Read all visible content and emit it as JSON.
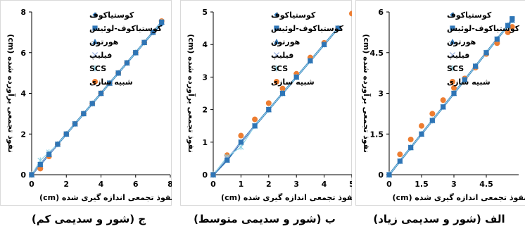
{
  "chart_data": [
    {
      "type": "scatter",
      "caption": "ج (شور و سدیمی کم)",
      "xlabel": "نفوذ تجمعی اندازه گیری شده (cm)",
      "ylabel": "نفوذ تجمعی برآورده شده (cm)",
      "xlim": [
        0,
        8
      ],
      "ylim": [
        0,
        8
      ],
      "xticks": [
        0,
        2,
        4,
        6,
        8
      ],
      "yticks": [
        0,
        2,
        4,
        6,
        8
      ],
      "xtick_labels": [
        "0",
        "2",
        "4",
        "6",
        "8"
      ],
      "ytick_labels": [
        "0",
        "2",
        "4",
        "6",
        "8"
      ],
      "legend_position": "top-left",
      "series": [
        {
          "name": "کوستیاکوف",
          "marker": "diamond",
          "color": "#2e75b6",
          "x": [
            0,
            0.5,
            1,
            1.5,
            2,
            2.5,
            3,
            3.5,
            4,
            4.5,
            5,
            5.5,
            6,
            6.5,
            7,
            7.5
          ],
          "y": [
            0,
            0.5,
            1,
            1.5,
            2,
            2.5,
            3,
            3.5,
            4,
            4.5,
            5,
            5.5,
            6,
            6.5,
            7,
            7.4
          ]
        },
        {
          "name": "کوستیاکوف-لوئیس",
          "marker": "square",
          "color": "#2e75b6",
          "x": [
            0,
            0.5,
            1,
            1.5,
            2,
            2.5,
            3,
            3.5,
            4,
            4.5,
            5,
            5.5,
            6,
            6.5,
            7,
            7.5
          ],
          "y": [
            0,
            0.5,
            1,
            1.5,
            2,
            2.5,
            3,
            3.5,
            4,
            4.5,
            5,
            5.5,
            6,
            6.5,
            7,
            7.5
          ]
        },
        {
          "name": "هورتون",
          "marker": "triangle",
          "color": "#2e75b6",
          "x": [
            0,
            0.5,
            1,
            1.5,
            2,
            2.5,
            3,
            3.5,
            4,
            4.5,
            5,
            5.5,
            6,
            6.5,
            7,
            7.5
          ],
          "y": [
            0,
            0.5,
            1,
            1.5,
            2,
            2.5,
            3,
            3.5,
            4,
            4.5,
            5,
            5.5,
            6,
            6.5,
            7,
            7.5
          ]
        },
        {
          "name": "فیلیپ",
          "marker": "x",
          "color": "#9ab0dd",
          "x": [
            0,
            0.5,
            1,
            1.5,
            2,
            2.5,
            3,
            3.5,
            4,
            4.5,
            5,
            5.5,
            6,
            6.5,
            7,
            7.5
          ],
          "y": [
            0,
            0.5,
            1,
            1.5,
            2,
            2.5,
            3,
            3.5,
            4,
            4.5,
            5,
            5.5,
            6,
            6.5,
            7,
            7.5
          ]
        },
        {
          "name": "SCS",
          "marker": "asterisk",
          "color": "#8fd3e6",
          "x": [
            0,
            0.5,
            1,
            1.5,
            2,
            2.5,
            3,
            3.5,
            4,
            4.5,
            5,
            5.5,
            6,
            6.5,
            7,
            7.5
          ],
          "y": [
            0,
            0.7,
            1.1,
            1.5,
            2,
            2.5,
            3,
            3.5,
            4,
            4.5,
            5,
            5.5,
            6,
            6.5,
            7,
            7.5
          ]
        },
        {
          "name": "شبیه سازی",
          "marker": "circle",
          "color": "#ed7d31",
          "x": [
            0,
            0.5,
            1,
            1.5,
            2,
            2.5,
            3,
            3.5,
            4,
            4.5,
            5,
            5.5,
            6,
            6.5,
            7,
            7.5
          ],
          "y": [
            0,
            0.3,
            0.9,
            1.5,
            2,
            2.5,
            3,
            3.5,
            4,
            4.5,
            5,
            5.5,
            6,
            6.5,
            7,
            7.55
          ]
        }
      ]
    },
    {
      "type": "scatter",
      "caption": "ب (شور و سدیمی متوسط)",
      "xlabel": "نفوذ تجمعی اندازه گیری شده (cm)",
      "ylabel": "نفوذ تجمعی برآورده شده (cm)",
      "xlim": [
        0,
        5
      ],
      "ylim": [
        0,
        5
      ],
      "xticks": [
        0,
        1,
        2,
        3,
        4,
        5
      ],
      "yticks": [
        0,
        1,
        2,
        3,
        4,
        5
      ],
      "xtick_labels": [
        "0",
        "1",
        "2",
        "3",
        "4",
        "5"
      ],
      "ytick_labels": [
        "0",
        "1",
        "2",
        "3",
        "4",
        "5"
      ],
      "legend_position": "top-left",
      "series": [
        {
          "name": "کوستیاکوف",
          "marker": "diamond",
          "color": "#2e75b6",
          "x": [
            0,
            0.5,
            1,
            1.5,
            2,
            2.5,
            3,
            3.5,
            4,
            4.5
          ],
          "y": [
            0,
            0.45,
            1,
            1.5,
            2,
            2.5,
            3,
            3.5,
            4,
            4.5
          ]
        },
        {
          "name": "کوستیاکوف-لوئیس",
          "marker": "square",
          "color": "#2e75b6",
          "x": [
            0,
            0.5,
            1,
            1.5,
            2,
            2.5,
            3,
            3.5,
            4,
            4.5
          ],
          "y": [
            0,
            0.45,
            1,
            1.5,
            2,
            2.5,
            3,
            3.5,
            4,
            4.5
          ]
        },
        {
          "name": "هورتون",
          "marker": "triangle",
          "color": "#2e75b6",
          "x": [
            0,
            0.5,
            1,
            1.5,
            2,
            2.5,
            3,
            3.5,
            4,
            4.5
          ],
          "y": [
            0,
            0.45,
            1,
            1.5,
            2,
            2.5,
            3,
            3.5,
            4,
            4.5
          ]
        },
        {
          "name": "فیلیپ",
          "marker": "x",
          "color": "#9ab0dd",
          "x": [
            0,
            0.5,
            1,
            1.5,
            2,
            2.5,
            3,
            3.5,
            4,
            4.5
          ],
          "y": [
            0,
            0.5,
            1,
            1.5,
            2,
            2.5,
            3,
            3.5,
            4,
            4.5
          ]
        },
        {
          "name": "SCS",
          "marker": "asterisk",
          "color": "#8fd3e6",
          "x": [
            0,
            0.5,
            1,
            1.5,
            2,
            2.5,
            3,
            3.5,
            4,
            4.5
          ],
          "y": [
            0,
            0.55,
            0.85,
            1.5,
            2,
            2.5,
            3,
            3.5,
            4,
            4.5
          ]
        },
        {
          "name": "شبیه سازی",
          "marker": "circle",
          "color": "#ed7d31",
          "x": [
            0,
            0.5,
            1,
            1.5,
            2,
            2.5,
            3,
            3.5,
            4,
            4.5,
            5
          ],
          "y": [
            0,
            0.6,
            1.2,
            1.7,
            2.2,
            2.65,
            3.1,
            3.6,
            4.05,
            4.5,
            4.95
          ]
        }
      ]
    },
    {
      "type": "scatter",
      "caption": "الف (شور و سدیمی زیاد)",
      "xlabel": "نفوذ تجمعی اندازه گیری شده (cm)",
      "ylabel": "نفوذ تجمعی برآورده شده (cm)",
      "xlim": [
        0,
        6
      ],
      "ylim": [
        0,
        6
      ],
      "xticks": [
        0,
        1.5,
        3,
        4.5
      ],
      "yticks": [
        0,
        1.5,
        3,
        4.5,
        6
      ],
      "xtick_labels": [
        "0",
        "1.5",
        "3",
        "4.5"
      ],
      "ytick_labels": [
        "0",
        "1.5",
        "3",
        "4.5",
        "6"
      ],
      "legend_position": "top-left",
      "series": [
        {
          "name": "کوستیاکوف",
          "marker": "diamond",
          "color": "#2e75b6",
          "x": [
            0,
            0.5,
            1,
            1.5,
            2,
            2.5,
            3,
            3.5,
            4,
            4.5,
            5,
            5.5,
            5.7
          ],
          "y": [
            0,
            0.5,
            1,
            1.5,
            2,
            2.5,
            3,
            3.5,
            4,
            4.5,
            5,
            5.5,
            5.7
          ]
        },
        {
          "name": "کوستیاکوف-لوئیس",
          "marker": "square",
          "color": "#2e75b6",
          "x": [
            0,
            0.5,
            1,
            1.5,
            2,
            2.5,
            3,
            3.5,
            4,
            4.5,
            5,
            5.5,
            5.7
          ],
          "y": [
            0,
            0.5,
            1,
            1.5,
            2,
            2.5,
            3,
            3.5,
            4,
            4.5,
            5,
            5.5,
            5.75
          ]
        },
        {
          "name": "هورتون",
          "marker": "triangle",
          "color": "#2e75b6",
          "x": [
            0,
            0.5,
            1,
            1.5,
            2,
            2.5,
            3,
            3.5,
            4,
            4.5,
            5,
            5.5,
            5.7
          ],
          "y": [
            0,
            0.5,
            1,
            1.5,
            2,
            2.5,
            3,
            3.5,
            4,
            4.5,
            5,
            5.5,
            5.7
          ]
        },
        {
          "name": "فیلیپ",
          "marker": "x",
          "color": "#9ab0dd",
          "x": [
            0,
            0.5,
            1,
            1.5,
            2,
            2.5,
            3,
            3.5,
            4,
            4.5,
            5,
            5.5,
            5.7
          ],
          "y": [
            0,
            0.5,
            1,
            1.5,
            2,
            2.5,
            3,
            3.5,
            4,
            4.5,
            5,
            5.5,
            5.7
          ]
        },
        {
          "name": "SCS",
          "marker": "asterisk",
          "color": "#8fd3e6",
          "x": [
            0,
            0.5,
            1,
            1.5,
            2,
            2.5,
            3,
            3.5,
            4,
            4.5,
            5,
            5.5,
            5.7
          ],
          "y": [
            0,
            0.5,
            1,
            1.5,
            2,
            2.5,
            3,
            3.5,
            4,
            4.5,
            5,
            5.5,
            5.7
          ]
        },
        {
          "name": "شبیه سازی",
          "marker": "circle",
          "color": "#ed7d31",
          "x": [
            0.5,
            1,
            1.5,
            2,
            2.5,
            3,
            3.5,
            4,
            4.5,
            5,
            5.5,
            5.7
          ],
          "y": [
            0.75,
            1.3,
            1.8,
            2.25,
            2.75,
            3.2,
            3.55,
            3.95,
            4.45,
            4.85,
            5.25,
            5.45
          ]
        }
      ]
    }
  ]
}
